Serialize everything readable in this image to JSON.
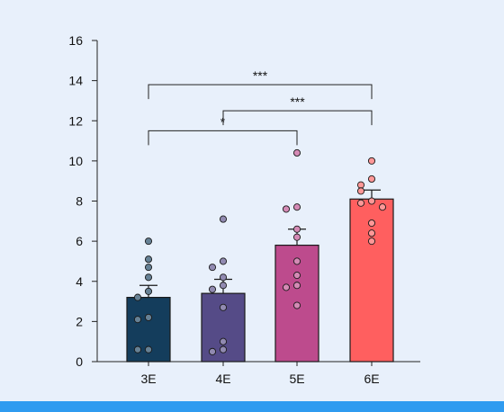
{
  "chart_data": {
    "type": "bar",
    "title": "",
    "xlabel": "",
    "ylabel": "",
    "categories": [
      "3E",
      "4E",
      "5E",
      "6E"
    ],
    "values": [
      3.2,
      3.4,
      5.8,
      8.1
    ],
    "error": [
      0.6,
      0.7,
      0.8,
      0.45
    ],
    "colors": [
      "#143d5c",
      "#554b87",
      "#bd4b8d",
      "#ff5f5f"
    ],
    "points": [
      [
        6.0,
        5.1,
        4.7,
        4.2,
        3.5,
        3.2,
        2.2,
        2.1,
        0.6,
        0.6
      ],
      [
        7.1,
        5.0,
        4.7,
        4.2,
        3.8,
        3.6,
        2.7,
        1.0,
        0.6,
        0.5
      ],
      [
        10.4,
        7.7,
        7.6,
        6.6,
        6.2,
        5.0,
        4.3,
        3.8,
        3.7,
        2.8
      ],
      [
        10.0,
        9.1,
        8.8,
        8.5,
        8.0,
        7.9,
        7.7,
        6.9,
        6.4,
        6.0
      ]
    ],
    "ylim": [
      0,
      16
    ],
    "yticks": [
      0,
      2,
      4,
      6,
      8,
      10,
      12,
      14,
      16
    ],
    "significance": [
      {
        "from": "3E",
        "to": "5E",
        "label": "*"
      },
      {
        "from": "4E",
        "to": "6E",
        "label": "***"
      },
      {
        "from": "3E",
        "to": "6E",
        "label": "***"
      }
    ]
  }
}
